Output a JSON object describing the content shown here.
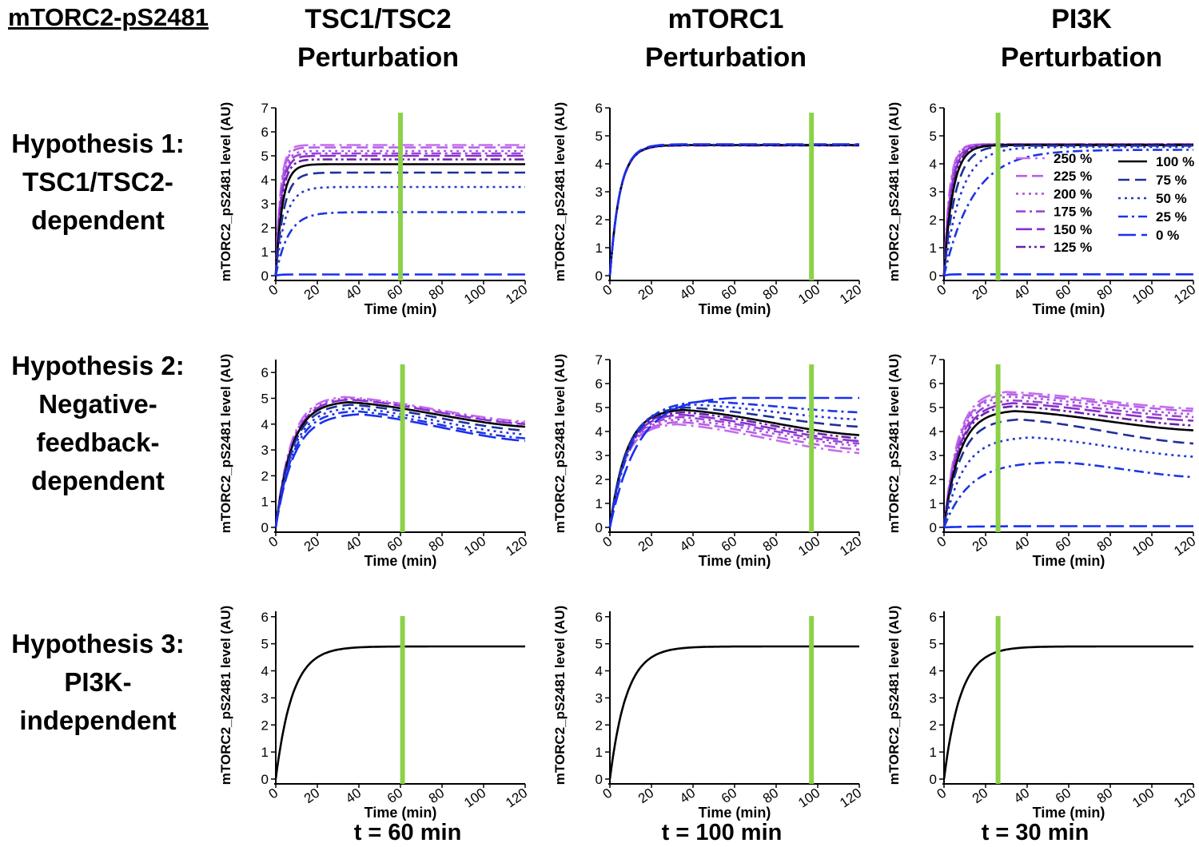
{
  "figure": {
    "corner_title": "mTORC2-pS2481",
    "columns": [
      {
        "line1": "TSC1/TSC2",
        "line2": "Perturbation"
      },
      {
        "line1": "mTORC1",
        "line2": "Perturbation"
      },
      {
        "line1": "PI3K",
        "line2": "Perturbation"
      }
    ],
    "rows": [
      {
        "lines": [
          "Hypothesis 1:",
          "TSC1/TSC2-",
          "dependent"
        ]
      },
      {
        "lines": [
          "Hypothesis 2:",
          "Negative-",
          "feedback-",
          "dependent"
        ]
      },
      {
        "lines": [
          "Hypothesis 3:",
          "PI3K-",
          "independent"
        ]
      }
    ],
    "footer": [
      "t = 60 min",
      "t = 100 min",
      "t = 30 min"
    ],
    "marker_color": "#8dd14a",
    "series_colors": {
      "250 %": "#c46df0",
      "225 %": "#b85fe8",
      "200 %": "#ad52e0",
      "175 %": "#9c45d6",
      "150 %": "#8a2fd0",
      "125 %": "#6a1fa8",
      "100 %": "#000000",
      "75 %": "#1f2f9a",
      "50 %": "#2336d6",
      "25 %": "#1d35e6",
      "0 %": "#1a2ff0"
    }
  },
  "chart_data": [
    {
      "type": "line",
      "panel": "H1-TSC",
      "xlabel": "Time (min)",
      "ylabel": "mTORC2_pS2481 level (AU)",
      "x_ticks": [
        0,
        20,
        40,
        60,
        80,
        100,
        120
      ],
      "y_ticks": [
        0,
        1,
        2,
        3,
        4,
        5,
        6,
        7
      ],
      "xlim": [
        0,
        120
      ],
      "ylim": [
        0,
        7
      ],
      "marker_x": 60,
      "series": [
        {
          "name": "250 %",
          "plateau": 5.45,
          "rise_tau": 2.2
        },
        {
          "name": "225 %",
          "plateau": 5.35,
          "rise_tau": 2.3
        },
        {
          "name": "200 %",
          "plateau": 5.2,
          "rise_tau": 2.4
        },
        {
          "name": "175 %",
          "plateau": 5.1,
          "rise_tau": 2.5
        },
        {
          "name": "150 %",
          "plateau": 5.0,
          "rise_tau": 2.6
        },
        {
          "name": "125 %",
          "plateau": 4.85,
          "rise_tau": 2.8
        },
        {
          "name": "100 %",
          "plateau": 4.65,
          "rise_tau": 3.2
        },
        {
          "name": "75 %",
          "plateau": 4.3,
          "rise_tau": 3.8
        },
        {
          "name": "50 %",
          "plateau": 3.7,
          "rise_tau": 4.5
        },
        {
          "name": "25 %",
          "plateau": 2.65,
          "rise_tau": 6.0
        },
        {
          "name": "0 %",
          "plateau": 0.05,
          "rise_tau": 2.0
        }
      ]
    },
    {
      "type": "line",
      "panel": "H1-mTORC1",
      "xlabel": "Time (min)",
      "ylabel": "mTORC2_pS2481 level (AU)",
      "x_ticks": [
        0,
        20,
        40,
        60,
        80,
        100,
        120
      ],
      "y_ticks": [
        0,
        1,
        2,
        3,
        4,
        5,
        6
      ],
      "xlim": [
        0,
        120
      ],
      "ylim": [
        0,
        6
      ],
      "marker_x": 97,
      "series": [
        {
          "name": "250 %",
          "plateau": 4.65,
          "rise_tau": 4.8
        },
        {
          "name": "200 %",
          "plateau": 4.66,
          "rise_tau": 4.8
        },
        {
          "name": "150 %",
          "plateau": 4.67,
          "rise_tau": 4.8
        },
        {
          "name": "100 %",
          "plateau": 4.67,
          "rise_tau": 4.8
        },
        {
          "name": "50 %",
          "plateau": 4.68,
          "rise_tau": 4.8
        },
        {
          "name": "0 %",
          "plateau": 4.7,
          "rise_tau": 4.8
        }
      ]
    },
    {
      "type": "line",
      "panel": "H1-PI3K",
      "xlabel": "Time (min)",
      "ylabel": "mTORC2_pS2481 level (AU)",
      "x_ticks": [
        0,
        20,
        40,
        60,
        80,
        100,
        120
      ],
      "y_ticks": [
        0,
        1,
        2,
        3,
        4,
        5,
        6
      ],
      "xlim": [
        0,
        120
      ],
      "ylim": [
        0,
        6
      ],
      "marker_x": 26,
      "legend": {
        "placement": "inside-right",
        "entries": [
          "250 %",
          "225 %",
          "200 %",
          "175 %",
          "150 %",
          "125 %",
          "100 %",
          "75 %",
          "50 %",
          "25 %",
          "0 %"
        ]
      },
      "series": [
        {
          "name": "250 %",
          "plateau": 4.7,
          "rise_tau": 2.6
        },
        {
          "name": "225 %",
          "plateau": 4.7,
          "rise_tau": 2.8
        },
        {
          "name": "200 %",
          "plateau": 4.7,
          "rise_tau": 3.0
        },
        {
          "name": "175 %",
          "plateau": 4.7,
          "rise_tau": 3.2
        },
        {
          "name": "150 %",
          "plateau": 4.68,
          "rise_tau": 3.4
        },
        {
          "name": "125 %",
          "plateau": 4.68,
          "rise_tau": 3.7
        },
        {
          "name": "100 %",
          "plateau": 4.67,
          "rise_tau": 4.2
        },
        {
          "name": "75 %",
          "plateau": 4.65,
          "rise_tau": 5.5
        },
        {
          "name": "50 %",
          "plateau": 4.6,
          "rise_tau": 8.0
        },
        {
          "name": "25 %",
          "plateau": 4.5,
          "rise_tau": 14.0
        },
        {
          "name": "0 %",
          "plateau": 0.05,
          "rise_tau": 2.0
        }
      ]
    },
    {
      "type": "line",
      "panel": "H2-TSC",
      "xlabel": "Time (min)",
      "ylabel": "mTORC2_pS2481 level (AU)",
      "x_ticks": [
        0,
        20,
        40,
        60,
        80,
        100,
        120
      ],
      "y_ticks": [
        0,
        1,
        2,
        3,
        4,
        5,
        6
      ],
      "xlim": [
        0,
        120
      ],
      "ylim": [
        0,
        6.5
      ],
      "marker_x": 61,
      "series": [
        {
          "name": "250 %",
          "peak": 5.05,
          "peak_time": 33,
          "end_value": 4.1
        },
        {
          "name": "200 %",
          "peak": 5.0,
          "peak_time": 34,
          "end_value": 4.05
        },
        {
          "name": "150 %",
          "peak": 4.95,
          "peak_time": 35,
          "end_value": 4.0
        },
        {
          "name": "100 %",
          "peak": 4.85,
          "peak_time": 35,
          "end_value": 3.9
        },
        {
          "name": "75 %",
          "peak": 4.75,
          "peak_time": 36,
          "end_value": 3.75
        },
        {
          "name": "50 %",
          "peak": 4.62,
          "peak_time": 37,
          "end_value": 3.6
        },
        {
          "name": "25 %",
          "peak": 4.5,
          "peak_time": 38,
          "end_value": 3.45
        },
        {
          "name": "0 %",
          "peak": 4.38,
          "peak_time": 40,
          "end_value": 3.35
        }
      ]
    },
    {
      "type": "line",
      "panel": "H2-mTORC1",
      "xlabel": "Time (min)",
      "ylabel": "mTORC2_pS2481 level (AU)",
      "x_ticks": [
        0,
        20,
        40,
        60,
        80,
        100,
        120
      ],
      "y_ticks": [
        0,
        1,
        2,
        3,
        4,
        5,
        6,
        7
      ],
      "xlim": [
        0,
        120
      ],
      "ylim": [
        0,
        7
      ],
      "marker_x": 97,
      "series": [
        {
          "name": "250 %",
          "peak": 4.3,
          "peak_time": 32,
          "end_value": 3.1
        },
        {
          "name": "225 %",
          "peak": 4.4,
          "peak_time": 33,
          "end_value": 3.25
        },
        {
          "name": "200 %",
          "peak": 4.5,
          "peak_time": 33,
          "end_value": 3.4
        },
        {
          "name": "175 %",
          "peak": 4.6,
          "peak_time": 34,
          "end_value": 3.5
        },
        {
          "name": "150 %",
          "peak": 4.7,
          "peak_time": 34,
          "end_value": 3.6
        },
        {
          "name": "125 %",
          "peak": 4.8,
          "peak_time": 35,
          "end_value": 3.72
        },
        {
          "name": "100 %",
          "peak": 4.9,
          "peak_time": 35,
          "end_value": 3.85
        },
        {
          "name": "75 %",
          "peak": 5.0,
          "peak_time": 37,
          "end_value": 4.2
        },
        {
          "name": "50 %",
          "peak": 5.12,
          "peak_time": 40,
          "end_value": 4.5
        },
        {
          "name": "25 %",
          "peak": 5.25,
          "peak_time": 45,
          "end_value": 4.8
        },
        {
          "name": "0 %",
          "peak": 5.4,
          "peak_time": 60,
          "end_value": 5.4
        }
      ]
    },
    {
      "type": "line",
      "panel": "H2-PI3K",
      "xlabel": "Time (min)",
      "ylabel": "mTORC2_pS2481 level (AU)",
      "x_ticks": [
        0,
        20,
        40,
        60,
        80,
        100,
        120
      ],
      "y_ticks": [
        0,
        1,
        2,
        3,
        4,
        5,
        6,
        7
      ],
      "xlim": [
        0,
        120
      ],
      "ylim": [
        0,
        7
      ],
      "marker_x": 26,
      "series": [
        {
          "name": "250 %",
          "peak": 5.65,
          "peak_time": 30,
          "end_value": 4.95
        },
        {
          "name": "225 %",
          "peak": 5.55,
          "peak_time": 31,
          "end_value": 4.85
        },
        {
          "name": "200 %",
          "peak": 5.45,
          "peak_time": 31,
          "end_value": 4.72
        },
        {
          "name": "175 %",
          "peak": 5.3,
          "peak_time": 32,
          "end_value": 4.6
        },
        {
          "name": "150 %",
          "peak": 5.18,
          "peak_time": 33,
          "end_value": 4.45
        },
        {
          "name": "125 %",
          "peak": 5.05,
          "peak_time": 33,
          "end_value": 4.25
        },
        {
          "name": "100 %",
          "peak": 4.85,
          "peak_time": 34,
          "end_value": 4.05
        },
        {
          "name": "75 %",
          "peak": 4.5,
          "peak_time": 36,
          "end_value": 3.5
        },
        {
          "name": "50 %",
          "peak": 3.75,
          "peak_time": 42,
          "end_value": 2.95
        },
        {
          "name": "25 %",
          "peak": 2.72,
          "peak_time": 55,
          "end_value": 2.1
        },
        {
          "name": "0 %",
          "peak": 0.05,
          "peak_time": 60,
          "end_value": 0.05
        }
      ]
    },
    {
      "type": "line",
      "panel": "H3-TSC",
      "xlabel": "Time (min)",
      "ylabel": "mTORC2_pS2481 level (AU)",
      "x_ticks": [
        0,
        20,
        40,
        60,
        80,
        100,
        120
      ],
      "y_ticks": [
        0,
        1,
        2,
        3,
        4,
        5,
        6
      ],
      "xlim": [
        0,
        120
      ],
      "ylim": [
        0,
        6.2
      ],
      "marker_x": 61,
      "series": [
        {
          "name": "100 %",
          "plateau": 4.9,
          "rise_tau": 8.0
        }
      ]
    },
    {
      "type": "line",
      "panel": "H3-mTORC1",
      "xlabel": "Time (min)",
      "ylabel": "mTORC2_pS2481 level (AU)",
      "x_ticks": [
        0,
        20,
        40,
        60,
        80,
        100,
        120
      ],
      "y_ticks": [
        0,
        1,
        2,
        3,
        4,
        5,
        6
      ],
      "xlim": [
        0,
        120
      ],
      "ylim": [
        0,
        6.2
      ],
      "marker_x": 97,
      "series": [
        {
          "name": "100 %",
          "plateau": 4.9,
          "rise_tau": 8.0
        }
      ]
    },
    {
      "type": "line",
      "panel": "H3-PI3K",
      "xlabel": "Time (min)",
      "ylabel": "mTORC2_pS2481 level (AU)",
      "x_ticks": [
        0,
        20,
        40,
        60,
        80,
        100,
        120
      ],
      "y_ticks": [
        0,
        1,
        2,
        3,
        4,
        5,
        6
      ],
      "xlim": [
        0,
        120
      ],
      "ylim": [
        0,
        6.2
      ],
      "marker_x": 26,
      "series": [
        {
          "name": "100 %",
          "plateau": 4.9,
          "rise_tau": 8.0
        }
      ]
    }
  ]
}
